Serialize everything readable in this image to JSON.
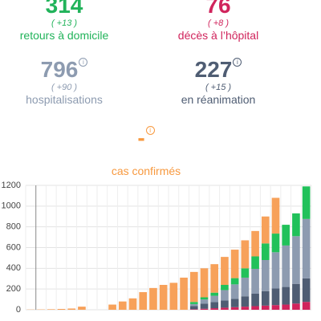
{
  "stats": [
    {
      "value": "314",
      "delta": "( +13 )",
      "label": "retours à domicile",
      "color": "#21b35a"
    },
    {
      "value": "76",
      "delta": "( +8 )",
      "label": "décès à l’hôpital",
      "color": "#d0245c"
    },
    {
      "value": "796",
      "delta": "( +90 )",
      "label": "hospitalisations",
      "color": "#8d9bb0"
    },
    {
      "value": "227",
      "delta": "( +15 )",
      "label": "en réanimation",
      "color": "#4f5d73"
    },
    {
      "value": "-",
      "delta": "",
      "label": "cas confirmés",
      "color": "#f7993f"
    }
  ],
  "chart_data": {
    "type": "stacked_bar",
    "categories": [
      null,
      null,
      null,
      null,
      null,
      null,
      null,
      null,
      null,
      null,
      null,
      null,
      null,
      null,
      null,
      null,
      null,
      null,
      null,
      null,
      null,
      null,
      null,
      null,
      null,
      null,
      null,
      null
    ],
    "series": [
      {
        "color": "#d0245c",
        "values": [
          0,
          0,
          0,
          0,
          0,
          0,
          0,
          0,
          0,
          0,
          0,
          0,
          0,
          0,
          0,
          0,
          5,
          10,
          15,
          20,
          25,
          30,
          35,
          40,
          45,
          50,
          60,
          76
        ]
      },
      {
        "color": "#4f5d73",
        "values": [
          0,
          0,
          0,
          0,
          0,
          0,
          0,
          0,
          0,
          0,
          0,
          0,
          0,
          0,
          0,
          0,
          30,
          50,
          60,
          70,
          80,
          100,
          120,
          140,
          160,
          170,
          190,
          227
        ]
      },
      {
        "color": "#8d9bb0",
        "values": [
          0,
          0,
          0,
          0,
          0,
          0,
          0,
          0,
          0,
          0,
          0,
          0,
          0,
          0,
          0,
          0,
          20,
          40,
          60,
          100,
          140,
          180,
          240,
          300,
          350,
          400,
          460,
          573
        ]
      },
      {
        "color": "#21c15a",
        "values": [
          0,
          0,
          0,
          0,
          0,
          0,
          0,
          0,
          0,
          0,
          0,
          0,
          0,
          0,
          0,
          0,
          20,
          20,
          30,
          50,
          60,
          90,
          120,
          160,
          180,
          200,
          220,
          314
        ]
      },
      {
        "color": "#f7a15a",
        "values": [
          2,
          3,
          5,
          8,
          12,
          30,
          0,
          0,
          50,
          80,
          110,
          170,
          210,
          240,
          260,
          310,
          290,
          280,
          275,
          270,
          275,
          270,
          245,
          260,
          345,
          0,
          0,
          0
        ]
      }
    ],
    "ylim": [
      0,
      1200
    ],
    "yticks": [
      0,
      200,
      400,
      600,
      800,
      1000,
      1200
    ],
    "grid": true
  }
}
